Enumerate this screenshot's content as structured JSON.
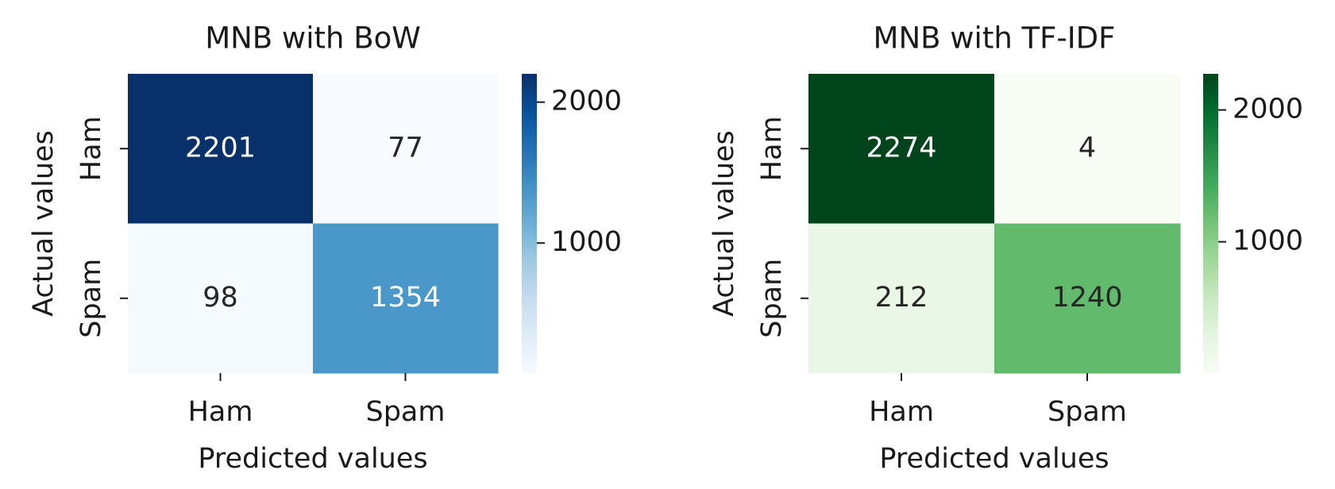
{
  "chart_data": [
    {
      "type": "heatmap",
      "title": "MNB with BoW",
      "x_label": "Predicted values",
      "y_label": "Actual values",
      "x_categories": [
        "Ham",
        "Spam"
      ],
      "y_categories": [
        "Ham",
        "Spam"
      ],
      "values": [
        [
          2201,
          77
        ],
        [
          98,
          1354
        ]
      ],
      "clim": [
        77,
        2201
      ],
      "cticks": [
        1000,
        2000
      ],
      "colormap": [
        "#f7fbff",
        "#deebf7",
        "#c6dbef",
        "#9ecae1",
        "#6baed6",
        "#4292c6",
        "#2171b5",
        "#08519c",
        "#08306b"
      ]
    },
    {
      "type": "heatmap",
      "title": "MNB with TF-IDF",
      "x_label": "Predicted values",
      "y_label": "Actual values",
      "x_categories": [
        "Ham",
        "Spam"
      ],
      "y_categories": [
        "Ham",
        "Spam"
      ],
      "values": [
        [
          2274,
          4
        ],
        [
          212,
          1240
        ]
      ],
      "clim": [
        4,
        2274
      ],
      "cticks": [
        1000,
        2000
      ],
      "colormap": [
        "#f7fcf5",
        "#e5f5e0",
        "#c7e9c0",
        "#a1d99b",
        "#74c476",
        "#41ab5d",
        "#238b45",
        "#006d2c",
        "#00441b"
      ]
    }
  ]
}
